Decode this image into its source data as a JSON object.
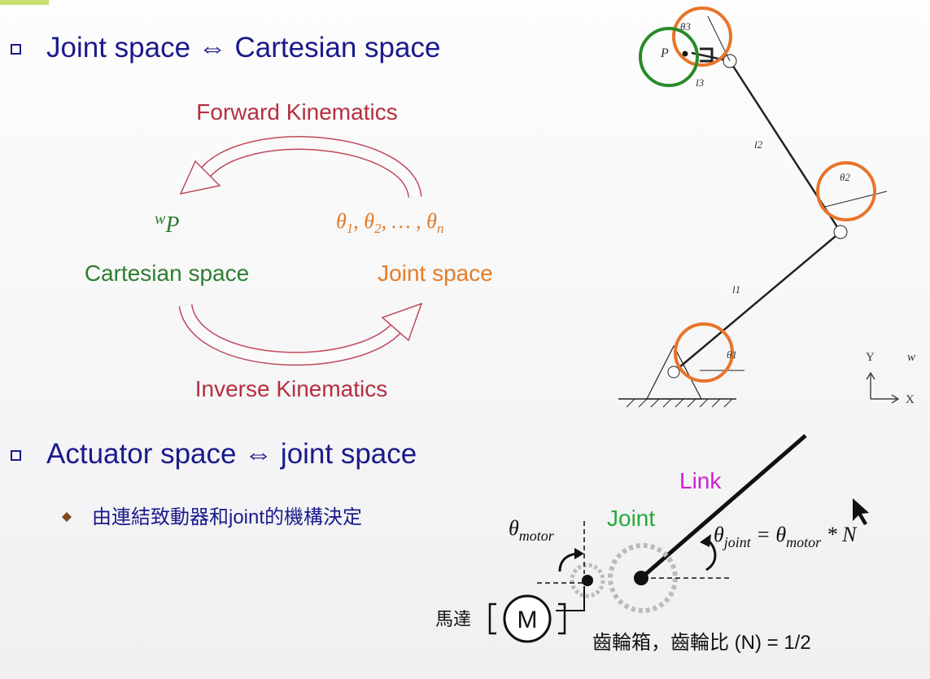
{
  "slide": {
    "bullet1": "Joint space ⇔ Cartesian space",
    "forward": "Forward Kinematics",
    "inverse": "Inverse Kinematics",
    "wp": {
      "sup": "w",
      "base": "P"
    },
    "thetas": [
      "θ",
      "1",
      ", θ",
      "2",
      ", … , θ",
      "n"
    ],
    "cartesian": "Cartesian space",
    "joint_space": "Joint space",
    "robot": {
      "theta3": "θ3",
      "p": "P",
      "l3": "l3",
      "l2": "l2",
      "theta2": "θ2",
      "l1": "l1",
      "theta1": "θ1",
      "y": "Y",
      "x": "X",
      "w": "w"
    },
    "bullet2": "Actuator space ⇔ joint space",
    "sub_bullet": "由連結致動器和joint的機構決定",
    "link": "Link",
    "joint": "Joint",
    "theta_motor": {
      "base": "θ",
      "sub": "motor"
    },
    "formula": [
      "θ",
      "joint",
      " = θ",
      "motor",
      " * N"
    ],
    "motor_symbol": "M",
    "motor_label": "馬達",
    "gearbox": "齒輪箱，齒輪比 (N) = 1/2"
  }
}
